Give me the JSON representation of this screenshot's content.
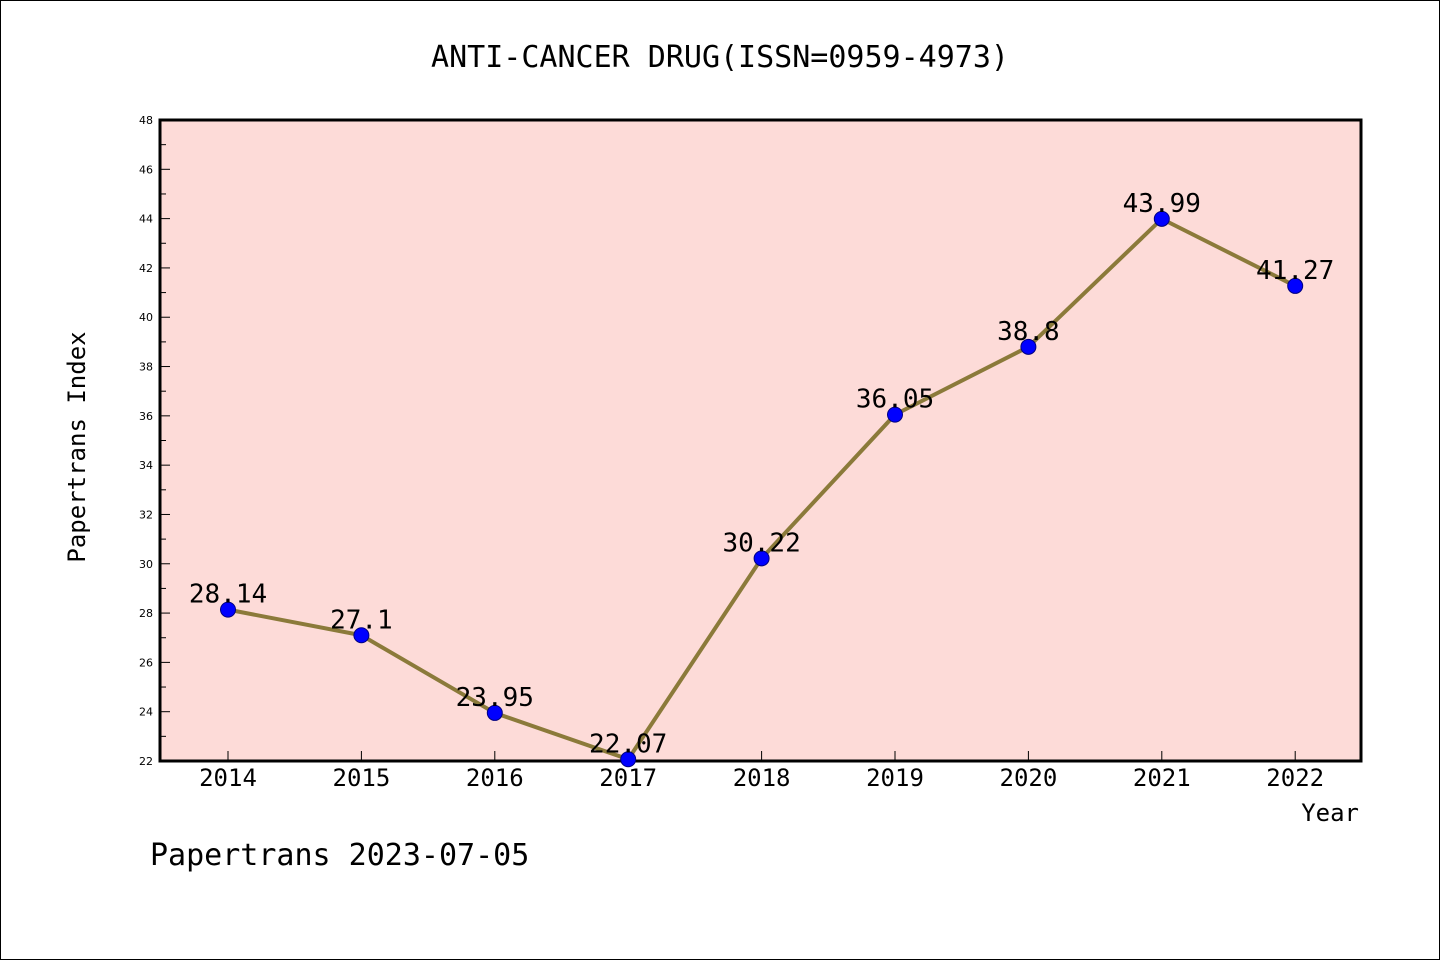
{
  "chart_data": {
    "type": "line",
    "title": "ANTI-CANCER DRUG(ISSN=0959-4973)",
    "xlabel": "Year",
    "ylabel": "Papertrans Index",
    "categories": [
      "2014",
      "2015",
      "2016",
      "2017",
      "2018",
      "2019",
      "2020",
      "2021",
      "2022"
    ],
    "values": [
      28.14,
      27.1,
      23.95,
      22.07,
      30.22,
      36.05,
      38.8,
      43.99,
      41.27
    ],
    "data_labels": [
      "28.14",
      "27.1",
      "23.95",
      "22.07",
      "30.22",
      "36.05",
      "38.8",
      "43.99",
      "41.27"
    ],
    "ylim": [
      22,
      48
    ],
    "yticks": [
      22,
      24,
      26,
      28,
      30,
      32,
      34,
      36,
      38,
      40,
      42,
      44,
      46,
      48
    ],
    "grid": false,
    "colors": {
      "plot_background": "#fddbd8",
      "line": "#8b7a3a",
      "marker": "#0000ff",
      "marker_edge": "#000080"
    }
  },
  "footer": {
    "watermark": "Papertrans 2023-07-05"
  }
}
